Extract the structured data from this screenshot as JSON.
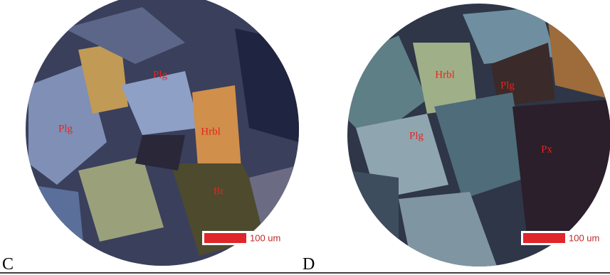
{
  "panels": [
    {
      "letter": "C",
      "labels": [
        "Plg",
        "Plg",
        "Hrbl",
        "Bt"
      ],
      "scale_bar": "100 um"
    },
    {
      "letter": "D",
      "labels": [
        "Hrbl",
        "Plg",
        "Plg",
        "Px"
      ],
      "scale_bar": "100 um"
    }
  ]
}
